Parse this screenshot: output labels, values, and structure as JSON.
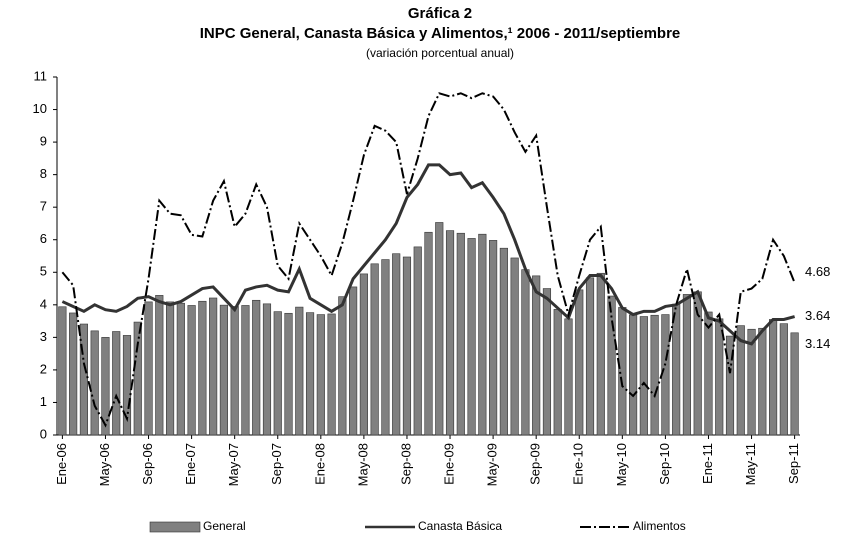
{
  "chart_data": {
    "type": "bar-line",
    "title": "Gráfica 2",
    "subtitle": "INPC General, Canasta Básica y Alimentos,¹ 2006 - 2011/septiembre",
    "note": "(variación porcentual anual)",
    "categories": [
      "Ene-06",
      null,
      null,
      null,
      "May-06",
      null,
      null,
      null,
      "Sep-06",
      null,
      null,
      null,
      "Ene-07",
      null,
      null,
      null,
      "May-07",
      null,
      null,
      null,
      "Sep-07",
      null,
      null,
      null,
      "Ene-08",
      null,
      null,
      null,
      "May-08",
      null,
      null,
      null,
      "Sep-08",
      null,
      null,
      null,
      "Ene-09",
      null,
      null,
      null,
      "May-09",
      null,
      null,
      null,
      "Sep-09",
      null,
      null,
      null,
      "Ene-10",
      null,
      null,
      null,
      "May-10",
      null,
      null,
      null,
      "Sep-10",
      null,
      null,
      null,
      "Ene-11",
      null,
      null,
      null,
      "May-11",
      null,
      null,
      null,
      "Sep-11"
    ],
    "series": [
      {
        "name": "General",
        "type": "bar",
        "color": "#808080",
        "values": [
          3.94,
          3.75,
          3.41,
          3.2,
          3.0,
          3.18,
          3.06,
          3.47,
          4.09,
          4.29,
          4.09,
          4.05,
          3.98,
          4.11,
          4.21,
          3.99,
          3.95,
          3.98,
          4.14,
          4.03,
          3.79,
          3.74,
          3.93,
          3.76,
          3.7,
          3.72,
          4.25,
          4.55,
          4.95,
          5.26,
          5.39,
          5.57,
          5.47,
          5.78,
          6.23,
          6.53,
          6.28,
          6.2,
          6.04,
          6.17,
          5.98,
          5.74,
          5.44,
          5.08,
          4.89,
          4.5,
          3.86,
          3.57,
          4.46,
          4.83,
          4.97,
          4.27,
          3.92,
          3.69,
          3.64,
          3.68,
          3.7,
          4.02,
          4.32,
          4.4,
          3.78,
          3.57,
          3.04,
          3.36,
          3.25,
          3.28,
          3.55,
          3.42,
          3.14
        ]
      },
      {
        "name": "Canasta Básica",
        "type": "line",
        "line_style": "solid",
        "color": "#333333",
        "values": [
          4.1,
          3.95,
          3.8,
          4.0,
          3.85,
          3.8,
          3.95,
          4.2,
          4.25,
          4.1,
          4.0,
          4.1,
          4.3,
          4.5,
          4.55,
          4.2,
          3.85,
          4.45,
          4.55,
          4.6,
          4.45,
          4.4,
          5.1,
          4.2,
          4.0,
          3.8,
          4.0,
          4.8,
          5.2,
          5.6,
          6.0,
          6.5,
          7.3,
          7.7,
          8.3,
          8.3,
          8.0,
          8.05,
          7.6,
          7.75,
          7.3,
          6.8,
          6.0,
          5.1,
          4.4,
          4.2,
          3.9,
          3.6,
          4.5,
          4.9,
          4.9,
          4.5,
          3.9,
          3.7,
          3.8,
          3.8,
          3.95,
          4.0,
          4.2,
          4.4,
          3.6,
          3.5,
          3.2,
          2.9,
          2.8,
          3.2,
          3.55,
          3.55,
          3.64
        ]
      },
      {
        "name": "Alimentos",
        "type": "line",
        "line_style": "dash-dot",
        "color": "#000000",
        "values": [
          5.0,
          4.6,
          2.2,
          0.9,
          0.3,
          1.2,
          0.5,
          2.8,
          4.8,
          7.2,
          6.8,
          6.75,
          6.15,
          6.1,
          7.2,
          7.8,
          6.4,
          6.8,
          7.7,
          7.0,
          5.2,
          4.8,
          6.5,
          6.0,
          5.5,
          4.9,
          5.9,
          7.2,
          8.6,
          9.5,
          9.35,
          9.0,
          7.4,
          8.5,
          9.8,
          10.5,
          10.4,
          10.5,
          10.35,
          10.5,
          10.4,
          10.0,
          9.3,
          8.7,
          9.2,
          7.0,
          4.9,
          3.7,
          4.9,
          6.0,
          6.4,
          3.6,
          1.5,
          1.2,
          1.6,
          1.2,
          2.2,
          4.0,
          5.1,
          3.7,
          3.3,
          3.7,
          1.9,
          4.4,
          4.5,
          4.8,
          6.0,
          5.5,
          4.68
        ]
      }
    ],
    "ylim": [
      0,
      11
    ],
    "yticks": [
      0,
      1,
      2,
      3,
      4,
      5,
      6,
      7,
      8,
      9,
      10,
      11
    ],
    "grid": false,
    "legend": "bottom",
    "end_labels": true
  }
}
